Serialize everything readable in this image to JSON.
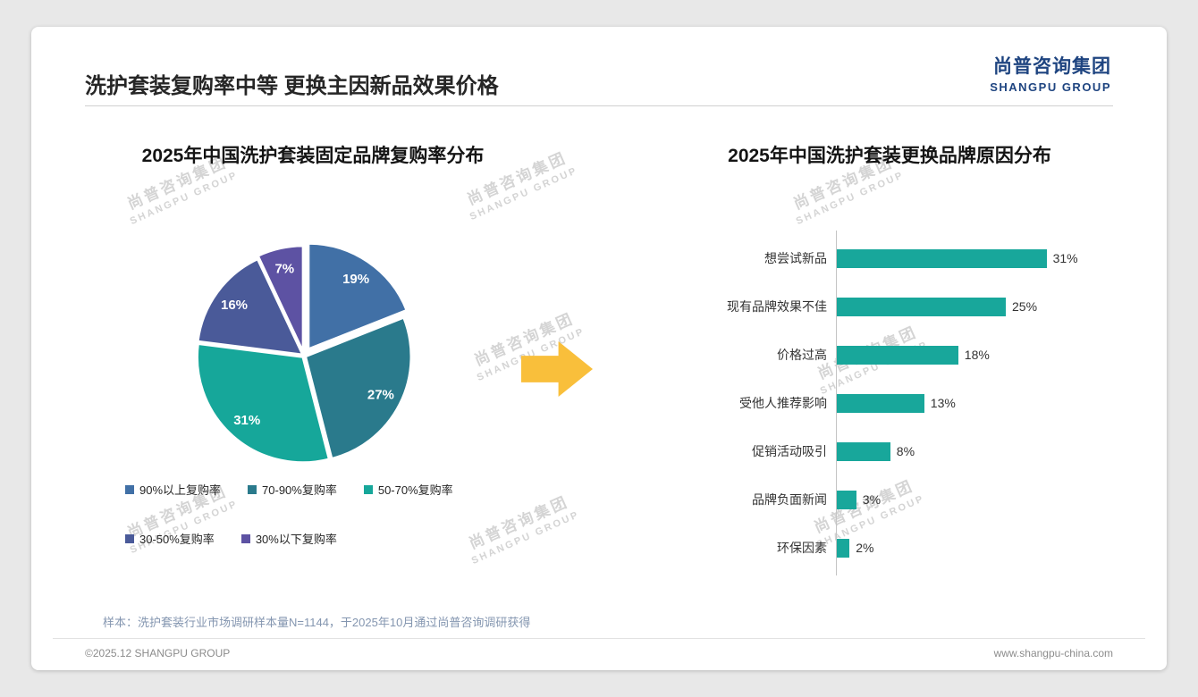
{
  "header": {
    "title": "洗护套装复购率中等 更换主因新品效果价格",
    "logo_cn": "尚普咨询集团",
    "logo_en": "SHANGPU GROUP"
  },
  "watermark": {
    "line1": "尚普咨询集团",
    "line2": "SHANGPU GROUP"
  },
  "footnote": "样本：洗护套装行业市场调研样本量N=1144，于2025年10月通过尚普咨询调研获得",
  "footer": {
    "left": "©2025.12 SHANGPU GROUP",
    "right": "www.shangpu-china.com"
  },
  "colors": {
    "logo_blue": "#1e4480",
    "arrow_yellow": "#f9bf3b",
    "bar_teal": "#18a79b"
  },
  "chart_data": [
    {
      "type": "pie",
      "title": "2025年中国洗护套装固定品牌复购率分布",
      "labels": [
        "90%以上复购率",
        "70-90%复购率",
        "50-70%复购率",
        "30-50%复购率",
        "30%以下复购率"
      ],
      "values": [
        19,
        27,
        31,
        16,
        7
      ],
      "data_labels": [
        "19%",
        "27%",
        "31%",
        "16%",
        "7%"
      ],
      "colors": [
        "#4170a6",
        "#2a7a8c",
        "#16a79a",
        "#4a5a99",
        "#5d52a3"
      ],
      "legend_position": "bottom"
    },
    {
      "type": "bar",
      "orientation": "horizontal",
      "title": "2025年中国洗护套装更换品牌原因分布",
      "categories": [
        "想尝试新品",
        "现有品牌效果不佳",
        "价格过高",
        "受他人推荐影响",
        "促销活动吸引",
        "品牌负面新闻",
        "环保因素"
      ],
      "values": [
        31,
        25,
        18,
        13,
        8,
        3,
        2
      ],
      "data_labels": [
        "31%",
        "25%",
        "18%",
        "13%",
        "8%",
        "3%",
        "2%"
      ],
      "bar_color": "#18a79b",
      "xlim": [
        0,
        35
      ],
      "grid": false,
      "legend_position": "none"
    }
  ]
}
